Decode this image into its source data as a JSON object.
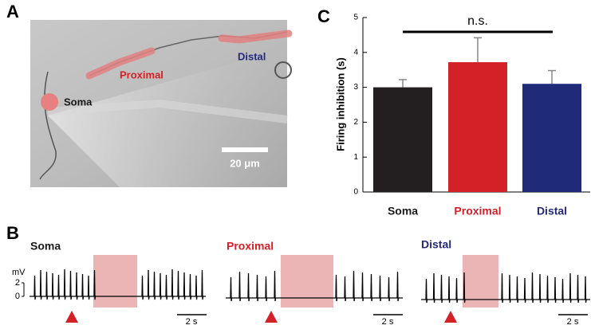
{
  "panel_labels": [
    "A",
    "B",
    "C"
  ],
  "image": {
    "labels": [
      {
        "text": "Soma",
        "color": "#1a1a1a"
      },
      {
        "text": "Proximal",
        "color": "#d42027"
      },
      {
        "text": "Distal",
        "color": "#232a7a"
      }
    ],
    "scale_bar": "20 μm"
  },
  "chart_data": {
    "type": "bar",
    "ylabel": "Firing inhibition (s)",
    "categories": [
      "Soma",
      "Proximal",
      "Distal"
    ],
    "category_colors": [
      "#1a1a1a",
      "#d42027",
      "#232a7a"
    ],
    "values": [
      3.0,
      3.72,
      3.1
    ],
    "errors": [
      0.22,
      0.7,
      0.38
    ],
    "colors": [
      "#231f20",
      "#d42027",
      "#1f2a78"
    ],
    "ylim": [
      0,
      5
    ],
    "yticks": [
      0,
      1,
      2,
      3,
      4,
      5
    ],
    "annotation": "n.s."
  },
  "traces": [
    {
      "label": "Soma",
      "color": "#1a1a1a"
    },
    {
      "label": "Proximal",
      "color": "#d42027"
    },
    {
      "label": "Distal",
      "color": "#232a7a"
    }
  ],
  "trace_axis": {
    "unit": "mV",
    "ticks": [
      0,
      2
    ]
  },
  "time_scale": "2 s"
}
